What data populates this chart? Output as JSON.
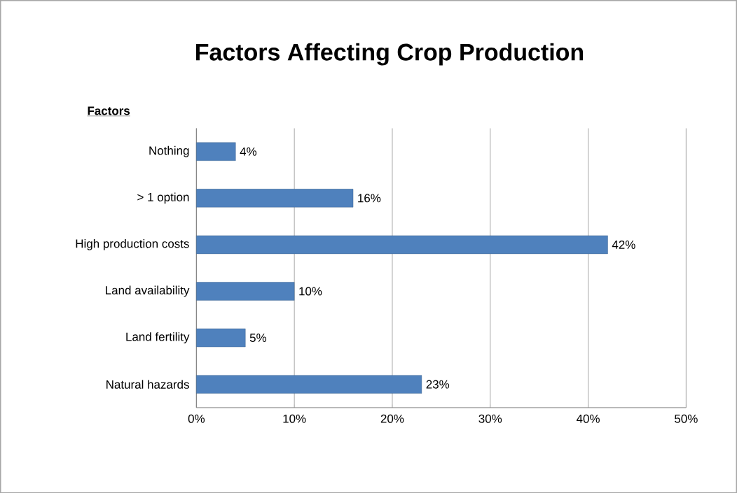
{
  "chart_data": {
    "type": "bar",
    "orientation": "horizontal",
    "title": "Factors Affecting Crop Production",
    "ylabel": "Factors",
    "categories": [
      "Nothing",
      "> 1 option",
      "High production costs",
      "Land availability",
      "Land fertility",
      "Natural hazards"
    ],
    "values": [
      4,
      16,
      42,
      10,
      5,
      23
    ],
    "value_labels": [
      "4%",
      "16%",
      "42%",
      "10%",
      "5%",
      "23%"
    ],
    "color": "#4f81bd",
    "xlim": [
      0,
      50
    ],
    "xticks": [
      {
        "value": 0,
        "label": "0%"
      },
      {
        "value": 10,
        "label": "10%"
      },
      {
        "value": 20,
        "label": "20%"
      },
      {
        "value": 30,
        "label": "30%"
      },
      {
        "value": 40,
        "label": "40%"
      },
      {
        "value": 50,
        "label": "50%"
      }
    ],
    "grid": "x"
  }
}
